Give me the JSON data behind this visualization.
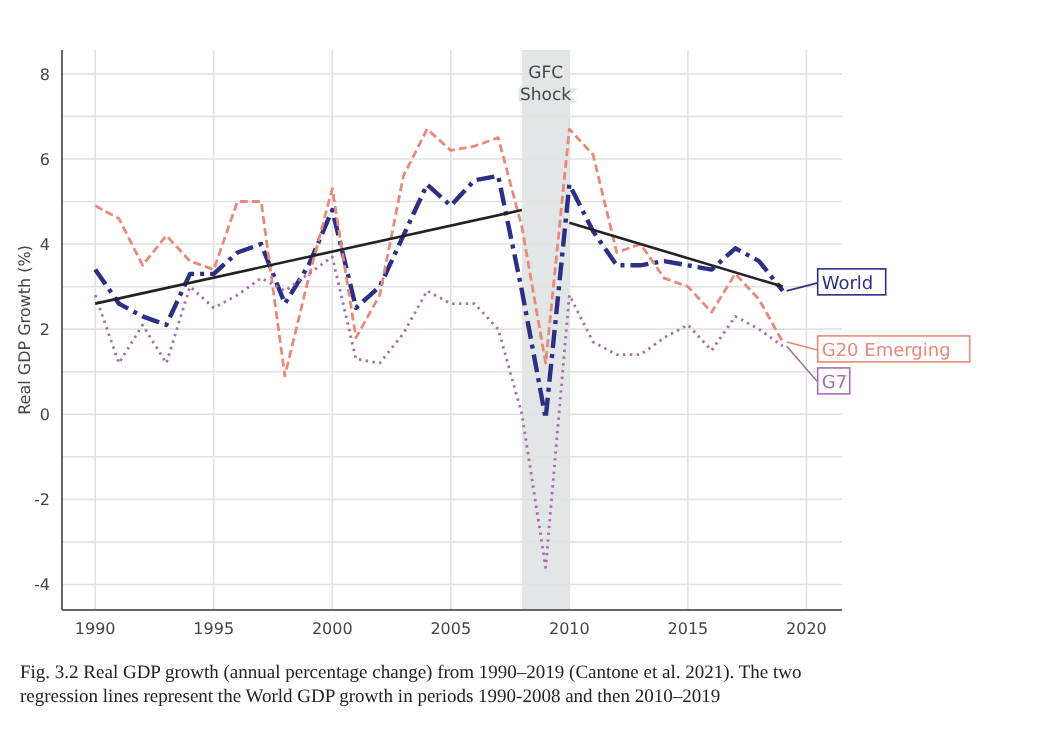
{
  "chart_data": {
    "type": "line",
    "ylabel": "Real GDP Growth (%)",
    "x": [
      1990,
      1991,
      1992,
      1993,
      1994,
      1995,
      1996,
      1997,
      1998,
      1999,
      2000,
      2001,
      2002,
      2003,
      2004,
      2005,
      2006,
      2007,
      2008,
      2009,
      2010,
      2011,
      2012,
      2013,
      2014,
      2015,
      2016,
      2017,
      2018,
      2019
    ],
    "series": [
      {
        "name": "World",
        "color": "#2b2f86",
        "line_style": "dashdot",
        "values": [
          3.4,
          2.6,
          2.3,
          2.1,
          3.3,
          3.3,
          3.8,
          4.0,
          2.6,
          3.5,
          4.8,
          2.5,
          3.0,
          4.2,
          5.4,
          4.9,
          5.5,
          5.6,
          2.9,
          -0.1,
          5.4,
          4.3,
          3.5,
          3.5,
          3.6,
          3.5,
          3.4,
          3.9,
          3.6,
          2.9
        ]
      },
      {
        "name": "G20 Emerging",
        "color": "#e8897a",
        "line_style": "dashed",
        "values": [
          4.9,
          4.6,
          3.5,
          4.2,
          3.6,
          3.4,
          5.0,
          5.0,
          0.9,
          3.2,
          5.3,
          1.8,
          2.8,
          5.6,
          6.7,
          6.2,
          6.3,
          6.5,
          4.4,
          1.2,
          6.7,
          6.1,
          3.8,
          4.0,
          3.2,
          3.0,
          2.4,
          3.3,
          2.7,
          1.7
        ]
      },
      {
        "name": "G7",
        "color": "#a86db0",
        "line_style": "dotted",
        "values": [
          2.8,
          1.2,
          2.1,
          1.2,
          3.0,
          2.5,
          2.8,
          3.2,
          2.9,
          3.3,
          3.7,
          1.3,
          1.2,
          1.9,
          2.9,
          2.6,
          2.6,
          2.0,
          0.0,
          -3.6,
          2.8,
          1.7,
          1.4,
          1.4,
          1.8,
          2.1,
          1.5,
          2.3,
          2.0,
          1.6
        ]
      },
      {
        "color": "#222222",
        "line_style": "solid",
        "x": [
          1990,
          2008
        ],
        "values": [
          2.6,
          4.8
        ]
      },
      {
        "color": "#222222",
        "line_style": "solid",
        "x": [
          2010,
          2019
        ],
        "values": [
          4.5,
          3.0
        ]
      }
    ],
    "xlim": [
      1988.6,
      2021.5
    ],
    "xticks": [
      1990,
      1995,
      2000,
      2005,
      2010,
      2015,
      2020
    ],
    "ylim": [
      -4.6,
      8.56
    ],
    "yticks": [
      {
        "value": -4,
        "label": "-4"
      },
      {
        "value": -3,
        "label": null
      },
      {
        "value": -2,
        "label": "-2"
      },
      {
        "value": -1,
        "label": null
      },
      {
        "value": 0,
        "label": "0"
      },
      {
        "value": 1,
        "label": null
      },
      {
        "value": 2,
        "label": "2"
      },
      {
        "value": 3,
        "label": null
      },
      {
        "value": 4,
        "label": "4"
      },
      {
        "value": 5,
        "label": null
      },
      {
        "value": 6,
        "label": "6"
      },
      {
        "value": 7,
        "label": null
      },
      {
        "value": 8,
        "label": "8"
      }
    ],
    "grid": true,
    "legend": "right",
    "marker": "none",
    "bands": [
      {
        "axis": "x",
        "from": 2008,
        "to": 2010,
        "label": "GFC Shock",
        "color": "#e3e6e6"
      }
    ],
    "annotations": [
      "Fig. 3.2  Real GDP growth (annual percentage change) from 1990–2019 (Cantone et al. 2021). The two regression lines represent the World GDP growth in periods 1990-2008 and then 2010–2019"
    ]
  }
}
